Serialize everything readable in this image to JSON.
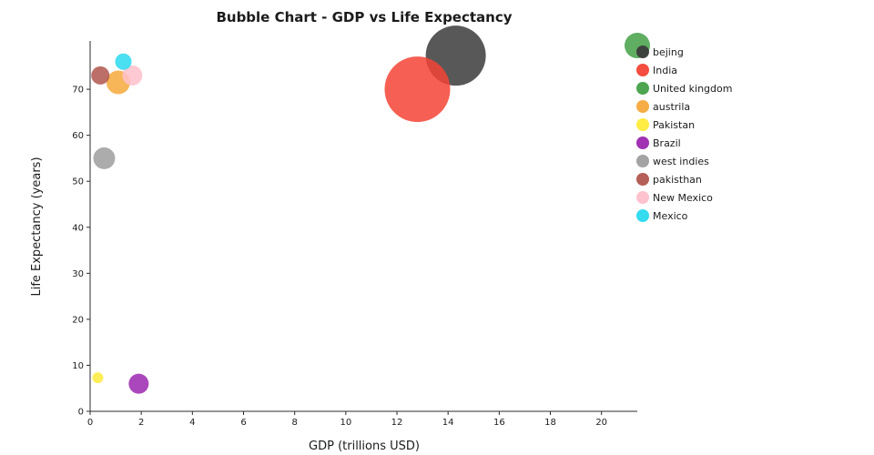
{
  "chart_data": {
    "type": "scatter",
    "subtype": "bubble",
    "title": "Bubble Chart - GDP vs Life Expectancy",
    "xlabel": "GDP (trillions USD)",
    "ylabel": "Life Expectancy (years)",
    "xlim": [
      0,
      21.4
    ],
    "ylim": [
      0,
      80.5
    ],
    "x_ticks": [
      0,
      2,
      4,
      6,
      8,
      10,
      12,
      14,
      16,
      18,
      20
    ],
    "y_ticks": [
      0,
      10,
      20,
      30,
      40,
      50,
      60,
      70
    ],
    "grid": false,
    "legend_position": "upper-right-outside",
    "marker_alpha": 0.85,
    "series": [
      {
        "name": "bejing",
        "x": 14.3,
        "y": 77.3,
        "size": 33,
        "color": "#3b3b3b"
      },
      {
        "name": "India",
        "x": 12.8,
        "y": 70.0,
        "size": 36,
        "color": "#f44335"
      },
      {
        "name": "United kingdom",
        "x": 21.4,
        "y": 79.5,
        "size": 14,
        "color": "#43a047"
      },
      {
        "name": "austrila",
        "x": 1.1,
        "y": 71.5,
        "size": 13,
        "color": "#f6a93b"
      },
      {
        "name": "Pakistan",
        "x": 0.3,
        "y": 7.3,
        "size": 6,
        "color": "#ffeb3b"
      },
      {
        "name": "Brazil",
        "x": 1.9,
        "y": 6.0,
        "size": 11,
        "color": "#9c27b0"
      },
      {
        "name": "west indies",
        "x": 0.55,
        "y": 55.0,
        "size": 12,
        "color": "#9e9e9e"
      },
      {
        "name": "pakisthan",
        "x": 0.4,
        "y": 73.0,
        "size": 10,
        "color": "#b0564e"
      },
      {
        "name": "New Mexico",
        "x": 1.65,
        "y": 73.0,
        "size": 11,
        "color": "#ffc0cb"
      },
      {
        "name": "Mexico",
        "x": 1.3,
        "y": 76.0,
        "size": 9,
        "color": "#2ad9ee"
      }
    ]
  }
}
